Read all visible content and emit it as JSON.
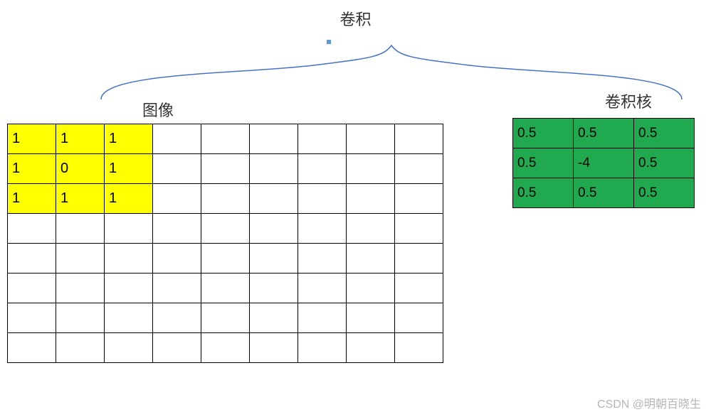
{
  "title": "卷积",
  "labels": {
    "image": "图像",
    "kernel": "卷积核"
  },
  "image_grid": {
    "rows": 8,
    "cols": 9,
    "cell_border_color": "#000000",
    "cell_bg_default": "#ffffff",
    "highlight_bg": "#ffff00",
    "font_size": 20,
    "cells": [
      {
        "r": 0,
        "c": 0,
        "v": "1",
        "bg": "#ffff00"
      },
      {
        "r": 0,
        "c": 1,
        "v": "1",
        "bg": "#ffff00"
      },
      {
        "r": 0,
        "c": 2,
        "v": "1",
        "bg": "#ffff00"
      },
      {
        "r": 1,
        "c": 0,
        "v": "1",
        "bg": "#ffff00"
      },
      {
        "r": 1,
        "c": 1,
        "v": "0",
        "bg": "#ffff00"
      },
      {
        "r": 1,
        "c": 2,
        "v": "1",
        "bg": "#ffff00"
      },
      {
        "r": 2,
        "c": 0,
        "v": "1",
        "bg": "#ffff00"
      },
      {
        "r": 2,
        "c": 1,
        "v": "1",
        "bg": "#ffff00"
      },
      {
        "r": 2,
        "c": 2,
        "v": "1",
        "bg": "#ffff00"
      }
    ]
  },
  "kernel_grid": {
    "rows": 3,
    "cols": 3,
    "cell_border_color": "#000000",
    "cell_bg": "#21a94f",
    "font_size": 19,
    "values": [
      [
        "0.5",
        "0.5",
        "0.5"
      ],
      [
        "0.5",
        "-4",
        "0.5"
      ],
      [
        "0.5",
        "0.5",
        "0.5"
      ]
    ]
  },
  "brace": {
    "stroke": "#4472c4",
    "stroke_width": 1.5
  },
  "marker": {
    "color": "#5b9bd5"
  },
  "watermark": "CSDN @明朝百晓生"
}
